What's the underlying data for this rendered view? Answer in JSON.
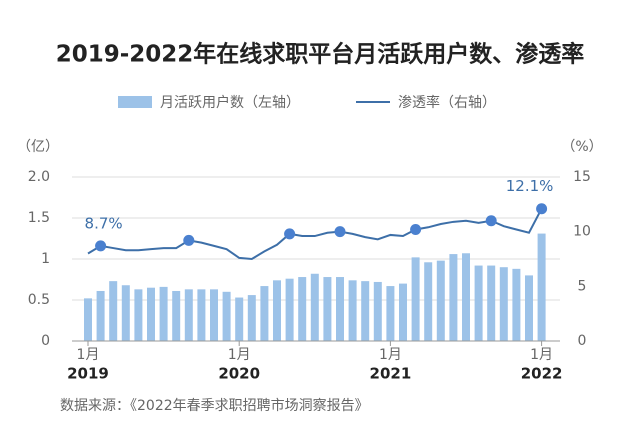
{
  "chart_data": {
    "type": "bar_line",
    "title": "2019-2022年在线求职平台月活跃用户数、渗透率",
    "y_label": "（亿）",
    "y2_label": "（%）",
    "categories": [
      "1月",
      null,
      null,
      null,
      null,
      null,
      null,
      null,
      null,
      null,
      null,
      null,
      "1月",
      null,
      null,
      null,
      null,
      null,
      null,
      null,
      null,
      null,
      null,
      null,
      "1月",
      null,
      null,
      null,
      null,
      null,
      null,
      null,
      null,
      null,
      null,
      null,
      "1月"
    ],
    "years": [
      "2019",
      "2020",
      "2021",
      "2022"
    ],
    "series": [
      {
        "name": "月活跃用户数（左轴）",
        "type": "bar",
        "color": "#9cc2e8",
        "values": [
          0.52,
          0.61,
          0.73,
          0.68,
          0.63,
          0.65,
          0.66,
          0.61,
          0.63,
          0.63,
          0.63,
          0.6,
          0.53,
          0.56,
          0.67,
          0.74,
          0.76,
          0.78,
          0.82,
          0.78,
          0.78,
          0.74,
          0.73,
          0.72,
          0.67,
          0.7,
          1.02,
          0.96,
          0.98,
          1.06,
          1.07,
          0.92,
          0.92,
          0.9,
          0.88,
          0.8,
          1.31
        ]
      },
      {
        "name": "渗透率（右轴）",
        "type": "line",
        "axis": "y2",
        "color": "#3d6fa8",
        "marker_color": "#4a80cf",
        "markers": [
          1,
          8,
          16,
          20,
          26,
          32,
          36
        ],
        "values": [
          8.0,
          8.7,
          8.5,
          8.3,
          8.3,
          8.4,
          8.5,
          8.5,
          9.2,
          9.0,
          8.7,
          8.4,
          7.6,
          7.5,
          8.2,
          8.8,
          9.8,
          9.6,
          9.6,
          9.9,
          10.0,
          9.8,
          9.5,
          9.3,
          9.7,
          9.6,
          10.2,
          10.4,
          10.7,
          10.9,
          11.0,
          10.8,
          11.0,
          10.5,
          10.2,
          9.9,
          12.1
        ],
        "value_labels": [
          null,
          "8.7%",
          null,
          null,
          null,
          null,
          null,
          null,
          null,
          null,
          null,
          null,
          null,
          null,
          null,
          null,
          null,
          null,
          null,
          null,
          null,
          null,
          null,
          null,
          null,
          null,
          null,
          null,
          null,
          null,
          null,
          null,
          null,
          null,
          null,
          null,
          "12.1%"
        ]
      }
    ],
    "ylim": [
      0,
      2.0
    ],
    "yticks": [
      0,
      0.5,
      1.0,
      1.5,
      {
        "value": 2,
        "label": "2.0"
      }
    ],
    "y2lim": [
      0,
      15
    ],
    "y2ticks": [
      0,
      5,
      10,
      15
    ],
    "grid": true,
    "source": "数据来源：《2022年春季求职招聘市场洞察报告》"
  }
}
